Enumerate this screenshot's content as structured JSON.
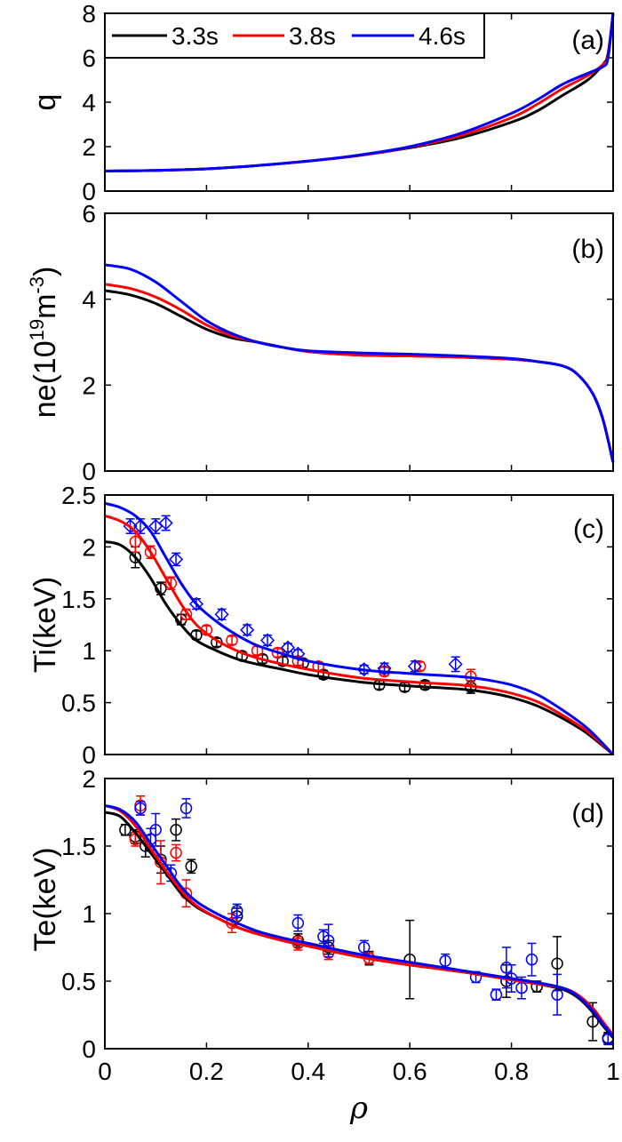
{
  "chart_data": [
    {
      "type": "line",
      "panel_label": "(a)",
      "ylabel": "q",
      "xlim": [
        0,
        1
      ],
      "ylim": [
        0,
        8
      ],
      "xticks": [
        0,
        0.2,
        0.4,
        0.6,
        0.8,
        1
      ],
      "yticks": [
        0,
        2,
        4,
        6,
        8
      ],
      "ytick_labels": [
        "0",
        "2",
        "4",
        "6",
        "8"
      ],
      "legend": {
        "placement": "top-left",
        "entries": [
          "3.3s",
          "3.8s",
          "4.6s"
        ]
      },
      "series": [
        {
          "name": "3.3s",
          "color": "#000000",
          "x": [
            0,
            0.1,
            0.2,
            0.3,
            0.4,
            0.5,
            0.6,
            0.7,
            0.8,
            0.85,
            0.9,
            0.95,
            0.98,
            0.99,
            1.0
          ],
          "y": [
            0.9,
            0.93,
            1.0,
            1.15,
            1.35,
            1.6,
            1.95,
            2.4,
            3.1,
            3.6,
            4.3,
            5.0,
            5.7,
            6.2,
            8.0
          ]
        },
        {
          "name": "3.8s",
          "color": "#ff0000",
          "x": [
            0,
            0.1,
            0.2,
            0.3,
            0.4,
            0.5,
            0.6,
            0.7,
            0.8,
            0.85,
            0.9,
            0.95,
            0.98,
            0.99,
            1.0
          ],
          "y": [
            0.9,
            0.93,
            1.0,
            1.15,
            1.35,
            1.6,
            1.98,
            2.5,
            3.3,
            3.9,
            4.6,
            5.2,
            5.7,
            6.1,
            8.0
          ]
        },
        {
          "name": "4.6s",
          "color": "#0000ff",
          "x": [
            0,
            0.1,
            0.2,
            0.3,
            0.4,
            0.5,
            0.6,
            0.7,
            0.8,
            0.85,
            0.9,
            0.95,
            0.98,
            0.99,
            1.0
          ],
          "y": [
            0.9,
            0.93,
            1.0,
            1.15,
            1.35,
            1.62,
            2.0,
            2.6,
            3.5,
            4.1,
            4.8,
            5.3,
            5.6,
            6.0,
            8.0
          ]
        }
      ]
    },
    {
      "type": "line",
      "panel_label": "(b)",
      "ylabel": "ne(10",
      "ylabel_sup1": "19",
      "ylabel_mid": "m",
      "ylabel_sup2": "-3",
      "ylabel_end": ")",
      "xlim": [
        0,
        1
      ],
      "ylim": [
        0,
        6
      ],
      "xticks": [
        0,
        0.2,
        0.4,
        0.6,
        0.8,
        1
      ],
      "yticks": [
        0,
        2,
        4,
        6
      ],
      "ytick_labels": [
        "0",
        "2",
        "4",
        "6"
      ],
      "series": [
        {
          "name": "3.3s",
          "color": "#000000",
          "x": [
            0,
            0.05,
            0.1,
            0.15,
            0.2,
            0.25,
            0.3,
            0.35,
            0.4,
            0.5,
            0.6,
            0.7,
            0.8,
            0.85,
            0.9,
            0.93,
            0.96,
            0.98,
            1.0
          ],
          "y": [
            4.2,
            4.1,
            3.9,
            3.6,
            3.3,
            3.1,
            3.0,
            2.88,
            2.78,
            2.7,
            2.68,
            2.65,
            2.6,
            2.55,
            2.45,
            2.25,
            1.8,
            1.2,
            0.2
          ]
        },
        {
          "name": "3.8s",
          "color": "#ff0000",
          "x": [
            0,
            0.05,
            0.1,
            0.15,
            0.2,
            0.25,
            0.3,
            0.35,
            0.4,
            0.5,
            0.6,
            0.7,
            0.8,
            0.85,
            0.9,
            0.93,
            0.96,
            0.98,
            1.0
          ],
          "y": [
            4.35,
            4.25,
            4.05,
            3.75,
            3.4,
            3.15,
            3.0,
            2.88,
            2.78,
            2.7,
            2.68,
            2.65,
            2.6,
            2.55,
            2.45,
            2.25,
            1.8,
            1.2,
            0.2
          ]
        },
        {
          "name": "4.6s",
          "color": "#0000ff",
          "x": [
            0,
            0.05,
            0.1,
            0.15,
            0.2,
            0.25,
            0.3,
            0.35,
            0.4,
            0.5,
            0.6,
            0.7,
            0.8,
            0.85,
            0.9,
            0.93,
            0.96,
            0.98,
            1.0
          ],
          "y": [
            4.8,
            4.7,
            4.4,
            3.95,
            3.5,
            3.2,
            3.0,
            2.88,
            2.8,
            2.75,
            2.72,
            2.68,
            2.62,
            2.55,
            2.45,
            2.25,
            1.8,
            1.2,
            0.2
          ]
        }
      ]
    },
    {
      "type": "line",
      "panel_label": "(c)",
      "ylabel": "Ti(keV)",
      "xlim": [
        0,
        1
      ],
      "ylim": [
        0,
        2.5
      ],
      "xticks": [
        0,
        0.2,
        0.4,
        0.6,
        0.8,
        1
      ],
      "yticks": [
        0,
        0.5,
        1,
        1.5,
        2,
        2.5
      ],
      "ytick_labels": [
        "0",
        "0.5",
        "1",
        "1.5",
        "2",
        "2.5"
      ],
      "series": [
        {
          "name": "3.3s",
          "color": "#000000",
          "x": [
            0,
            0.03,
            0.06,
            0.09,
            0.12,
            0.15,
            0.18,
            0.22,
            0.26,
            0.3,
            0.35,
            0.4,
            0.5,
            0.6,
            0.7,
            0.75,
            0.8,
            0.85,
            0.9,
            0.95,
            1.0
          ],
          "y": [
            2.05,
            2.02,
            1.9,
            1.7,
            1.45,
            1.25,
            1.1,
            1.0,
            0.92,
            0.87,
            0.82,
            0.77,
            0.7,
            0.66,
            0.63,
            0.6,
            0.55,
            0.47,
            0.35,
            0.2,
            0.0
          ]
        },
        {
          "name": "3.8s",
          "color": "#ff0000",
          "x": [
            0,
            0.03,
            0.06,
            0.09,
            0.12,
            0.15,
            0.18,
            0.22,
            0.26,
            0.3,
            0.35,
            0.4,
            0.5,
            0.6,
            0.7,
            0.75,
            0.8,
            0.85,
            0.9,
            0.95,
            1.0
          ],
          "y": [
            2.3,
            2.25,
            2.15,
            1.95,
            1.7,
            1.45,
            1.25,
            1.1,
            1.0,
            0.93,
            0.87,
            0.82,
            0.74,
            0.7,
            0.67,
            0.64,
            0.59,
            0.51,
            0.38,
            0.22,
            0.0
          ]
        },
        {
          "name": "4.6s",
          "color": "#0000ff",
          "x": [
            0,
            0.03,
            0.06,
            0.09,
            0.12,
            0.15,
            0.18,
            0.22,
            0.26,
            0.3,
            0.35,
            0.4,
            0.5,
            0.6,
            0.7,
            0.75,
            0.8,
            0.85,
            0.9,
            0.95,
            1.0
          ],
          "y": [
            2.42,
            2.38,
            2.3,
            2.15,
            1.9,
            1.65,
            1.45,
            1.28,
            1.15,
            1.05,
            0.97,
            0.9,
            0.82,
            0.78,
            0.75,
            0.72,
            0.67,
            0.58,
            0.43,
            0.25,
            0.0
          ]
        }
      ],
      "points": [
        {
          "color": "#000000",
          "marker": "circle",
          "x": [
            0.06,
            0.11,
            0.15,
            0.18,
            0.22,
            0.27,
            0.31,
            0.35,
            0.39,
            0.43,
            0.54,
            0.59,
            0.63,
            0.72
          ],
          "y": [
            1.9,
            1.6,
            1.3,
            1.15,
            1.08,
            0.95,
            0.92,
            0.9,
            0.88,
            0.77,
            0.67,
            0.65,
            0.67,
            0.65
          ],
          "err": [
            0.1,
            0.06,
            0.05,
            0.04,
            0.04,
            0.04,
            0.04,
            0.04,
            0.04,
            0.04,
            0.04,
            0.04,
            0.04,
            0.06
          ]
        },
        {
          "color": "#ff0000",
          "marker": "circle",
          "x": [
            0.06,
            0.09,
            0.13,
            0.16,
            0.2,
            0.25,
            0.3,
            0.34,
            0.38,
            0.42,
            0.55,
            0.62,
            0.72
          ],
          "y": [
            2.05,
            1.95,
            1.65,
            1.35,
            1.2,
            1.1,
            1.0,
            0.98,
            0.9,
            0.85,
            0.8,
            0.85,
            0.75
          ],
          "err": [
            0.1,
            0.06,
            0.06,
            0.05,
            0.04,
            0.04,
            0.04,
            0.04,
            0.04,
            0.04,
            0.04,
            0.04,
            0.07
          ]
        },
        {
          "color": "#0000ff",
          "marker": "diamond",
          "x": [
            0.05,
            0.07,
            0.1,
            0.12,
            0.14,
            0.18,
            0.23,
            0.28,
            0.32,
            0.36,
            0.38,
            0.51,
            0.55,
            0.61,
            0.69
          ],
          "y": [
            2.2,
            2.2,
            2.2,
            2.23,
            1.88,
            1.45,
            1.35,
            1.2,
            1.1,
            1.03,
            0.97,
            0.82,
            0.83,
            0.85,
            0.87
          ],
          "err": [
            0.07,
            0.07,
            0.07,
            0.07,
            0.06,
            0.05,
            0.05,
            0.05,
            0.05,
            0.04,
            0.04,
            0.04,
            0.05,
            0.05,
            0.07
          ]
        }
      ]
    },
    {
      "type": "line",
      "panel_label": "(d)",
      "ylabel": "Te(keV)",
      "xlabel": "ρ",
      "xlim": [
        0,
        1
      ],
      "ylim": [
        0,
        2
      ],
      "xticks": [
        0,
        0.2,
        0.4,
        0.6,
        0.8,
        1
      ],
      "xtick_labels": [
        "0",
        "0.2",
        "0.4",
        "0.6",
        "0.8",
        "1"
      ],
      "yticks": [
        0,
        0.5,
        1,
        1.5,
        2
      ],
      "ytick_labels": [
        "0",
        "0.5",
        "1",
        "1.5",
        "2"
      ],
      "series": [
        {
          "name": "3.3s",
          "color": "#000000",
          "x": [
            0,
            0.03,
            0.06,
            0.09,
            0.12,
            0.15,
            0.18,
            0.22,
            0.26,
            0.3,
            0.35,
            0.4,
            0.5,
            0.6,
            0.7,
            0.8,
            0.85,
            0.9,
            0.93,
            0.96,
            0.98,
            1.0
          ],
          "y": [
            1.75,
            1.72,
            1.6,
            1.45,
            1.3,
            1.15,
            1.05,
            0.97,
            0.9,
            0.85,
            0.8,
            0.76,
            0.68,
            0.62,
            0.57,
            0.51,
            0.48,
            0.44,
            0.38,
            0.27,
            0.17,
            0.08
          ]
        },
        {
          "name": "3.8s",
          "color": "#ff0000",
          "x": [
            0,
            0.03,
            0.06,
            0.09,
            0.12,
            0.15,
            0.18,
            0.22,
            0.26,
            0.3,
            0.35,
            0.4,
            0.5,
            0.6,
            0.7,
            0.8,
            0.85,
            0.9,
            0.93,
            0.96,
            0.98,
            1.0
          ],
          "y": [
            1.8,
            1.76,
            1.65,
            1.48,
            1.32,
            1.17,
            1.06,
            0.97,
            0.9,
            0.85,
            0.8,
            0.76,
            0.68,
            0.62,
            0.57,
            0.51,
            0.48,
            0.45,
            0.4,
            0.3,
            0.2,
            0.1
          ]
        },
        {
          "name": "4.6s",
          "color": "#0000ff",
          "x": [
            0,
            0.03,
            0.06,
            0.09,
            0.12,
            0.15,
            0.18,
            0.22,
            0.26,
            0.3,
            0.35,
            0.4,
            0.5,
            0.6,
            0.7,
            0.8,
            0.85,
            0.9,
            0.93,
            0.96,
            0.98,
            1.0
          ],
          "y": [
            1.8,
            1.77,
            1.68,
            1.52,
            1.36,
            1.2,
            1.09,
            1.0,
            0.93,
            0.87,
            0.82,
            0.78,
            0.7,
            0.64,
            0.58,
            0.52,
            0.49,
            0.45,
            0.39,
            0.28,
            0.18,
            0.09
          ]
        }
      ],
      "points": [
        {
          "color": "#000000",
          "marker": "circle",
          "x": [
            0.04,
            0.06,
            0.08,
            0.11,
            0.14,
            0.17,
            0.26,
            0.38,
            0.44,
            0.52,
            0.6,
            0.79,
            0.85,
            0.89,
            0.96,
            0.99
          ],
          "y": [
            1.62,
            1.57,
            1.5,
            1.4,
            1.62,
            1.35,
            0.98,
            0.8,
            0.75,
            0.67,
            0.66,
            0.5,
            0.46,
            0.63,
            0.2,
            0.08
          ],
          "err": [
            0.04,
            0.05,
            0.08,
            0.1,
            0.08,
            0.05,
            0.06,
            0.05,
            0.05,
            0.05,
            0.29,
            0.12,
            0.04,
            0.2,
            0.14,
            0.04
          ]
        },
        {
          "color": "#ff0000",
          "marker": "circle",
          "x": [
            0.06,
            0.07,
            0.11,
            0.14,
            0.16,
            0.25,
            0.38,
            0.44,
            0.52
          ],
          "y": [
            1.55,
            1.8,
            1.38,
            1.45,
            1.15,
            0.93,
            0.78,
            0.71,
            0.67
          ],
          "err": [
            0.05,
            0.07,
            0.16,
            0.06,
            0.1,
            0.07,
            0.05,
            0.05,
            0.04
          ]
        },
        {
          "color": "#0000ff",
          "marker": "circle",
          "x": [
            0.07,
            0.09,
            0.1,
            0.13,
            0.16,
            0.26,
            0.38,
            0.43,
            0.44,
            0.51,
            0.67,
            0.73,
            0.77,
            0.79,
            0.8,
            0.82,
            0.84,
            0.89,
            0.99
          ],
          "y": [
            1.78,
            1.55,
            1.62,
            1.3,
            1.78,
            1.02,
            0.93,
            0.83,
            0.8,
            0.75,
            0.65,
            0.53,
            0.4,
            0.6,
            0.52,
            0.45,
            0.66,
            0.4,
            0.07
          ],
          "err": [
            0.05,
            0.08,
            0.12,
            0.06,
            0.07,
            0.05,
            0.06,
            0.05,
            0.12,
            0.05,
            0.05,
            0.04,
            0.04,
            0.15,
            0.1,
            0.08,
            0.12,
            0.15,
            0.04
          ]
        }
      ]
    }
  ]
}
